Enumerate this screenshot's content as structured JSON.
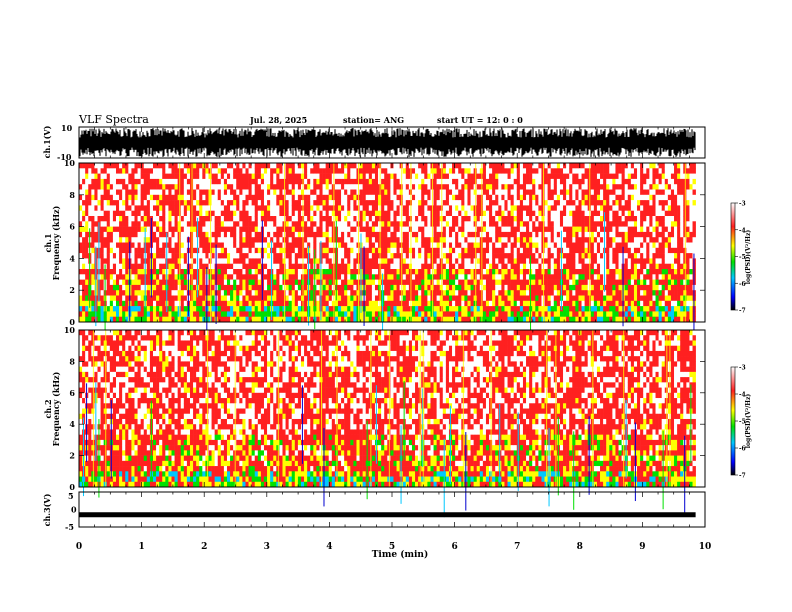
{
  "header": {
    "title": "VLF Spectra",
    "date": "Jul. 28, 2025",
    "station": "station= ANG",
    "start": "start UT =  12: 0 : 0"
  },
  "colors": {
    "hot": "#ff2020",
    "warm": "#ffff00",
    "mid": "#00e000",
    "cool": "#00c8ff",
    "cold": "#0000d0",
    "bg": "#ffffff"
  },
  "chart_data": [
    {
      "type": "area",
      "ylabel": "ch.1(V)",
      "ylim": [
        -10,
        10
      ],
      "yticks": [
        "10",
        "-10"
      ],
      "xlim": [
        0,
        10
      ],
      "description_values": "dense broadband waveform between about -10 V and +10 V"
    },
    {
      "type": "heatmap",
      "ylabel": "ch.1\nFrequency (kHz)",
      "ylabel_line1": "ch.1",
      "ylabel_line2": "Frequency (kHz)",
      "ylim": [
        0,
        10
      ],
      "yticks": [
        "0",
        "2",
        "4",
        "6",
        "8",
        "10"
      ],
      "xlim": [
        0,
        10
      ],
      "colorbar": {
        "label": "log(PSD)(V²/Hz)",
        "range": [
          -7,
          -3
        ],
        "ticks": [
          "-3",
          "-4",
          "-5",
          "-6",
          "-7"
        ]
      }
    },
    {
      "type": "heatmap",
      "ylabel": "ch.2\nFrequency (kHz)",
      "ylabel_line1": "ch.2",
      "ylabel_line2": "Frequency (kHz)",
      "ylim": [
        0,
        10
      ],
      "yticks": [
        "0",
        "2",
        "4",
        "6",
        "8",
        "10"
      ],
      "xlim": [
        0,
        10
      ],
      "colorbar": {
        "label": "log(PSD)(V²/Hz)",
        "range": [
          -7,
          -3
        ],
        "ticks": [
          "-3",
          "-4",
          "-5",
          "-6",
          "-7"
        ]
      }
    },
    {
      "type": "line",
      "ylabel": "ch.3(V)",
      "ylim": [
        -5,
        5
      ],
      "yticks": [
        "5",
        "0",
        "-5"
      ],
      "xlim": [
        0,
        9.85
      ],
      "values_constant": -1.5
    }
  ],
  "xaxis": {
    "label": "Time (min)",
    "ticks": [
      "0",
      "1",
      "2",
      "3",
      "4",
      "5",
      "6",
      "7",
      "8",
      "9",
      "10"
    ]
  }
}
